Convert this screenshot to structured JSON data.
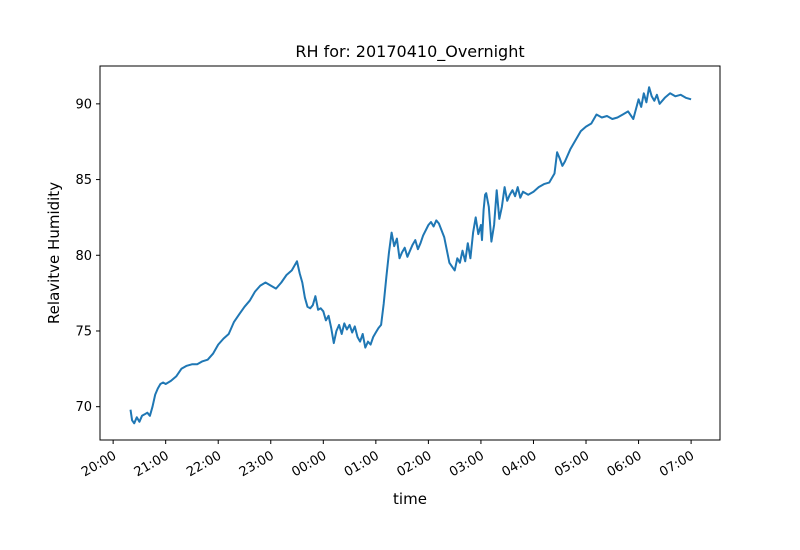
{
  "chart_data": {
    "type": "line",
    "title": "RH for: 20170410_Overnight",
    "xlabel": "time",
    "ylabel": "Relavitve Humidity",
    "x_ticks": [
      "20:00",
      "21:00",
      "22:00",
      "23:00",
      "00:00",
      "01:00",
      "02:00",
      "03:00",
      "04:00",
      "05:00",
      "06:00",
      "07:00"
    ],
    "y_ticks": [
      70,
      75,
      80,
      85,
      90
    ],
    "x_unit": "hours since 20:00 (axis labels show clock time)",
    "xlim": [
      -0.25,
      11.55
    ],
    "ylim": [
      67.8,
      92.5
    ],
    "grid": false,
    "color": "#1f77b4",
    "series": [
      {
        "x": [
          0.33,
          0.36,
          0.4,
          0.45,
          0.5,
          0.55,
          0.6,
          0.65,
          0.7,
          0.75,
          0.8,
          0.85,
          0.9,
          0.95,
          1.0,
          1.1,
          1.2,
          1.3,
          1.4,
          1.5,
          1.6,
          1.7,
          1.8,
          1.9,
          2.0,
          2.1,
          2.2,
          2.3,
          2.4,
          2.5,
          2.6,
          2.7,
          2.8,
          2.9,
          3.0,
          3.1,
          3.2,
          3.3,
          3.4,
          3.5,
          3.55,
          3.6,
          3.65,
          3.7,
          3.75,
          3.8,
          3.85,
          3.9,
          3.95,
          4.0,
          4.05,
          4.1,
          4.15,
          4.2,
          4.25,
          4.3,
          4.35,
          4.4,
          4.45,
          4.5,
          4.55,
          4.6,
          4.65,
          4.7,
          4.75,
          4.8,
          4.85,
          4.9,
          4.95,
          5.0,
          5.05,
          5.1,
          5.15,
          5.2,
          5.25,
          5.3,
          5.35,
          5.4,
          5.45,
          5.5,
          5.55,
          5.6,
          5.65,
          5.7,
          5.75,
          5.8,
          5.85,
          5.9,
          6.0,
          6.05,
          6.1,
          6.15,
          6.2,
          6.3,
          6.4,
          6.5,
          6.55,
          6.6,
          6.65,
          6.7,
          6.75,
          6.8,
          6.85,
          6.9,
          6.95,
          7.0,
          7.02,
          7.05,
          7.08,
          7.1,
          7.15,
          7.2,
          7.25,
          7.3,
          7.35,
          7.4,
          7.45,
          7.5,
          7.55,
          7.6,
          7.65,
          7.7,
          7.75,
          7.8,
          7.9,
          8.0,
          8.1,
          8.2,
          8.3,
          8.4,
          8.45,
          8.5,
          8.55,
          8.6,
          8.7,
          8.8,
          8.9,
          9.0,
          9.1,
          9.2,
          9.3,
          9.4,
          9.5,
          9.6,
          9.7,
          9.8,
          9.9,
          10.0,
          10.05,
          10.1,
          10.15,
          10.2,
          10.25,
          10.3,
          10.35,
          10.4,
          10.5,
          10.6,
          10.7,
          10.8,
          10.9,
          11.0
        ],
        "y": [
          69.8,
          69.1,
          68.9,
          69.3,
          69.0,
          69.4,
          69.5,
          69.6,
          69.4,
          70.0,
          70.8,
          71.2,
          71.5,
          71.6,
          71.5,
          71.7,
          72.0,
          72.5,
          72.7,
          72.8,
          72.8,
          73.0,
          73.1,
          73.5,
          74.1,
          74.5,
          74.8,
          75.6,
          76.1,
          76.6,
          77.0,
          77.6,
          78.0,
          78.2,
          78.0,
          77.8,
          78.2,
          78.7,
          79.0,
          79.6,
          78.8,
          78.2,
          77.2,
          76.6,
          76.5,
          76.7,
          77.3,
          76.4,
          76.5,
          76.3,
          75.7,
          76.0,
          75.2,
          74.2,
          75.0,
          75.4,
          74.8,
          75.5,
          75.1,
          75.4,
          74.9,
          75.3,
          74.6,
          74.3,
          74.8,
          73.9,
          74.3,
          74.1,
          74.6,
          74.9,
          75.2,
          75.4,
          76.8,
          78.6,
          80.2,
          81.5,
          80.6,
          81.1,
          79.8,
          80.2,
          80.5,
          79.9,
          80.3,
          80.7,
          81.0,
          80.4,
          80.8,
          81.3,
          82.0,
          82.2,
          81.9,
          82.3,
          82.1,
          81.2,
          79.5,
          79.0,
          79.8,
          79.5,
          80.3,
          79.6,
          80.8,
          79.8,
          81.5,
          82.5,
          81.4,
          82.0,
          81.0,
          83.0,
          84.0,
          84.1,
          83.2,
          80.9,
          82.0,
          84.3,
          82.4,
          83.2,
          84.5,
          83.6,
          84.0,
          84.3,
          83.9,
          84.5,
          83.8,
          84.2,
          84.0,
          84.2,
          84.5,
          84.7,
          84.8,
          85.4,
          86.8,
          86.4,
          85.9,
          86.2,
          87.0,
          87.6,
          88.2,
          88.5,
          88.7,
          89.3,
          89.1,
          89.2,
          89.0,
          89.1,
          89.3,
          89.5,
          89.0,
          90.3,
          89.8,
          90.7,
          90.1,
          91.1,
          90.5,
          90.2,
          90.6,
          90.0,
          90.4,
          90.7,
          90.5,
          90.6,
          90.4,
          90.3
        ]
      }
    ]
  }
}
